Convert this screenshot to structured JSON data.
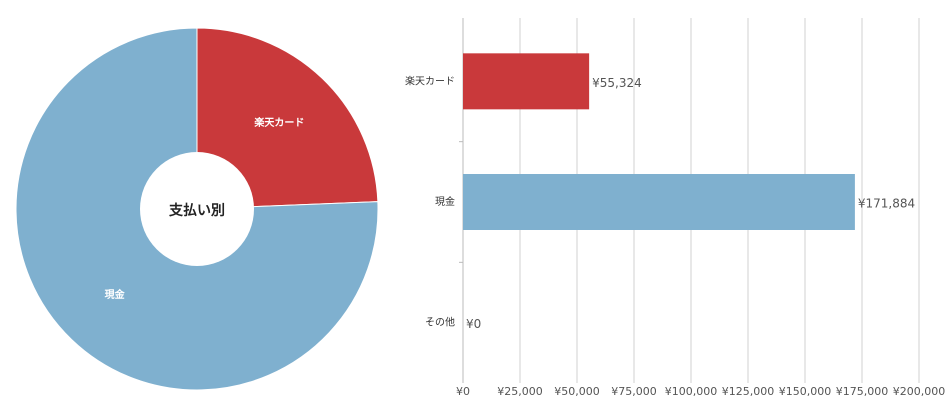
{
  "chart_data": [
    {
      "type": "pie",
      "center_label": "支払い別",
      "categories": [
        "楽天カード",
        "現金"
      ],
      "values": [
        55324,
        171884
      ],
      "colors": [
        "#c9393b",
        "#7fb0cf"
      ]
    },
    {
      "type": "hbar",
      "categories": [
        "楽天カード",
        "現金",
        "その他"
      ],
      "values": [
        55324,
        171884,
        0
      ],
      "value_labels": [
        "¥55,324",
        "¥171,884",
        "¥0"
      ],
      "colors": [
        "#c9393b",
        "#7fb0cf"
      ],
      "xlim": [
        0,
        200000
      ],
      "grid": true,
      "xticks": [
        {
          "value": 0,
          "label": "¥0"
        },
        {
          "value": 25000,
          "label": "¥25,000"
        },
        {
          "value": 50000,
          "label": "¥50,000"
        },
        {
          "value": 75000,
          "label": "¥75,000"
        },
        {
          "value": 100000,
          "label": "¥100,000"
        },
        {
          "value": 125000,
          "label": "¥125,000"
        },
        {
          "value": 150000,
          "label": "¥150,000"
        },
        {
          "value": 175000,
          "label": "¥175,000"
        },
        {
          "value": 200000,
          "label": "¥200,000"
        }
      ]
    }
  ]
}
